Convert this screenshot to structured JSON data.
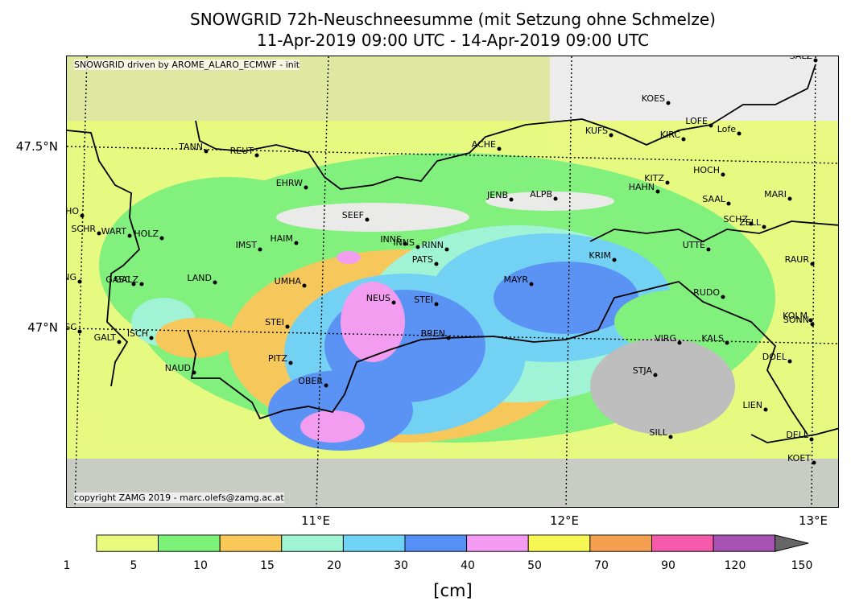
{
  "title_line1": "SNOWGRID 72h-Neuschneesumme (mit Setzung ohne Schmelze)",
  "title_line2": "11-Apr-2019 09:00 UTC - 14-Apr-2019 09:00 UTC",
  "model_note": "SNOWGRID driven by AROME_ALARO_ECMWF - init",
  "copyright": "copyright ZAMG 2019 - marc.olefs@zamg.ac.at",
  "lat_labels": [
    "47.5°N",
    "47°N"
  ],
  "lon_labels": [
    "11°E",
    "12°E",
    "13°E"
  ],
  "colorbar": {
    "unit": "[cm]",
    "ticks": [
      "1",
      "5",
      "10",
      "15",
      "20",
      "30",
      "40",
      "50",
      "70",
      "90",
      "120",
      "150"
    ],
    "colors": [
      "#e8fb7d",
      "#7df279",
      "#f9c856",
      "#9ff5d6",
      "#6fd2f7",
      "#5590f7",
      "#f59af3",
      "#f7f753",
      "#f5a050",
      "#f65aaa",
      "#a853b4"
    ],
    "extend_color": "#666666"
  },
  "stations": [
    "SALZ",
    "KOES",
    "LOFE",
    "Lofe",
    "KUFS",
    "KIRC",
    "ACHE",
    "TANN",
    "REUT",
    "HOCH",
    "KITZ",
    "EHRW",
    "HAHN",
    "JENB",
    "ALPB",
    "MARI",
    "SAAL",
    "SCHO",
    "SEEF",
    "SCHZ",
    "ZELL",
    "SCHR",
    "WART",
    "HOLZ",
    "HAIM",
    "INNS",
    "INNS",
    "RINN",
    "IMST",
    "UTTE",
    "KRIM",
    "PATS",
    "RAUR",
    "LANG",
    "GASC",
    "GALZ",
    "LAND",
    "UMHA",
    "MAYR",
    "NEUS",
    "STEI",
    "RUDO",
    "STEI",
    "GASC",
    "GALT",
    "ISCH",
    "BREN",
    "KOLM",
    "SONN",
    "VIRG",
    "KALS",
    "DOEL",
    "NAUD",
    "PITZ",
    "STJA",
    "OBER",
    "LIEN",
    "SILL",
    "DELL",
    "KOET"
  ]
}
